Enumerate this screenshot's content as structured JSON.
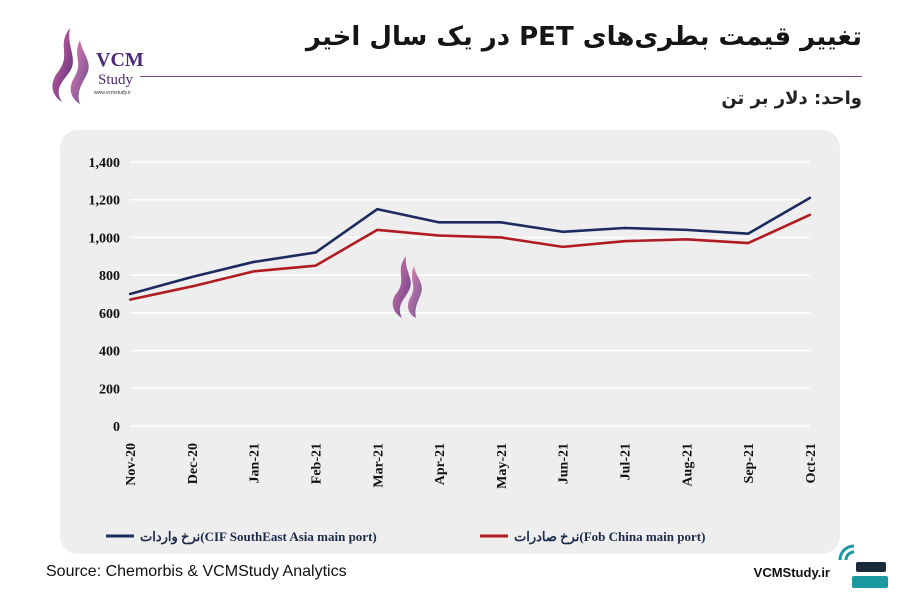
{
  "header": {
    "title": "تغییر قیمت بطری‌های PET در یک سال اخیر",
    "unit": "واحد: دلار بر تن"
  },
  "logo": {
    "brand_line1": "VCM",
    "brand_line2": "Study",
    "url": "www.vcmstudy.ir"
  },
  "footer": {
    "source": "Source: Chemorbis & VCMStudy Analytics",
    "site": "VCMStudy.ir"
  },
  "colors": {
    "import_series": "#1c2a5e",
    "export_series": "#b01c22",
    "accent": "#7a3a8e"
  },
  "chart_data": {
    "type": "line",
    "x": [
      "Nov-20",
      "Dec-20",
      "Jan-21",
      "Feb-21",
      "Mar-21",
      "Apr-21",
      "May-21",
      "Jun-21",
      "Jul-21",
      "Aug-21",
      "Sep-21",
      "Oct-21"
    ],
    "series": [
      {
        "name": "نرخ واردات(CIF SouthEast Asia main port)",
        "color": "#1c2a5e",
        "values": [
          700,
          790,
          870,
          920,
          1150,
          1080,
          1080,
          1030,
          1050,
          1040,
          1020,
          1210
        ]
      },
      {
        "name": "نرخ صادرات(Fob China main port)",
        "color": "#b01c22",
        "values": [
          670,
          740,
          820,
          850,
          1040,
          1010,
          1000,
          950,
          980,
          990,
          970,
          1120
        ]
      }
    ],
    "y_ticks": [
      "0",
      "200",
      "400",
      "600",
      "800",
      "1,000",
      "1,200",
      "1,400"
    ],
    "ylim": [
      0,
      1400
    ],
    "grid": "horizontal",
    "legend": "bottom"
  }
}
